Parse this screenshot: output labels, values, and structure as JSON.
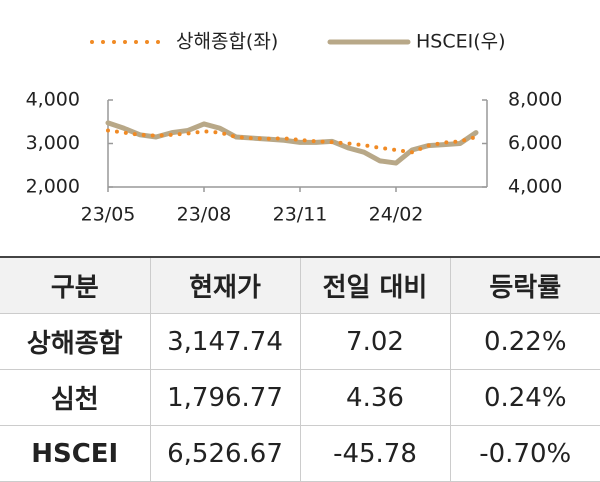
{
  "chart_data": {
    "type": "line",
    "categories": [
      "23/05",
      null,
      null,
      null,
      null,
      null,
      "23/08",
      null,
      null,
      null,
      null,
      null,
      "23/11",
      null,
      null,
      null,
      null,
      null,
      "24/02",
      null,
      null,
      null,
      null,
      null
    ],
    "series": [
      {
        "name": "상해종합(좌)",
        "color": "#f08a24",
        "axis": "y",
        "style": "dotted",
        "values": [
          3300,
          3250,
          3200,
          3180,
          3200,
          3230,
          3280,
          3250,
          3150,
          3120,
          3110,
          3120,
          3080,
          3050,
          3030,
          3000,
          2960,
          2900,
          2850,
          2800,
          2950,
          3020,
          3050,
          3150
        ]
      },
      {
        "name": "HSCEI(우)",
        "color": "#b8a888",
        "axis": "y2",
        "style": "solid",
        "values": [
          6950,
          6700,
          6400,
          6300,
          6500,
          6600,
          6900,
          6700,
          6300,
          6250,
          6200,
          6150,
          6050,
          6050,
          6100,
          5800,
          5600,
          5200,
          5100,
          5700,
          5900,
          5950,
          6000,
          6500
        ]
      }
    ],
    "ylim": [
      2000,
      4000
    ],
    "yticks": [
      {
        "value": 2000,
        "label": "2,000"
      },
      {
        "value": 3000,
        "label": "3,000"
      },
      {
        "value": 4000,
        "label": "4,000"
      }
    ],
    "y2lim": [
      4000,
      8000
    ],
    "y2ticks": [
      {
        "value": 4000,
        "label": "4,000"
      },
      {
        "value": 6000,
        "label": "6,000"
      },
      {
        "value": 8000,
        "label": "8,000"
      }
    ],
    "legend": "top"
  },
  "table": {
    "header": [
      "구분",
      "현재가",
      "전일 대비",
      "등락률"
    ],
    "rows": [
      [
        "상해종합",
        "3,147.74",
        "7.02",
        "0.22%"
      ],
      [
        "심천",
        "1,796.77",
        "4.36",
        "0.24%"
      ],
      [
        "HSCEI",
        "6,526.67",
        "-45.78",
        "-0.70%"
      ]
    ]
  }
}
